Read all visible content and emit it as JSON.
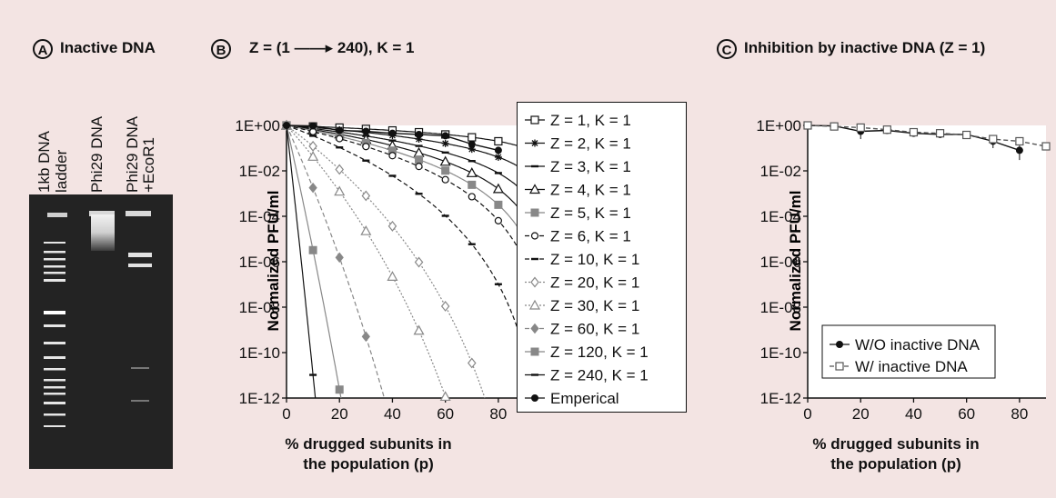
{
  "panel_a": {
    "letter": "A",
    "title": "Inactive DNA",
    "lanes": [
      "1kb DNA",
      "ladder",
      "Phi29 DNA",
      "Phi29 DNA",
      "+EcoR1"
    ]
  },
  "panel_b": {
    "letter": "B",
    "title": "Z = (1 ——▸ 240), K = 1"
  },
  "panel_c": {
    "letter": "C",
    "title": "Inhibition by inactive DNA (Z = 1)"
  },
  "chart_data": [
    {
      "type": "line",
      "title": "Z = (1 ——▸ 240), K = 1",
      "xlabel": "% drugged subunits in the population (p)",
      "ylabel": "Normalized PFU/ml",
      "x_ticks": [
        0,
        20,
        40,
        60,
        80
      ],
      "y_ticks": [
        "1E+00",
        "1E-02",
        "1E-04",
        "1E-06",
        "1E-08",
        "1E-10",
        "1E-12"
      ],
      "xlim": [
        0,
        90
      ],
      "ylim": [
        1e-12,
        1
      ],
      "y_scale": "log",
      "legend_position": "right",
      "series": [
        {
          "name": "Z = 1, K = 1",
          "z": 1,
          "color": "#111111",
          "marker": "square-open",
          "line": "solid"
        },
        {
          "name": "Z = 2, K = 1",
          "z": 2,
          "color": "#111111",
          "marker": "asterisk",
          "line": "solid"
        },
        {
          "name": "Z = 3, K = 1",
          "z": 3,
          "color": "#111111",
          "marker": "dash",
          "line": "solid"
        },
        {
          "name": "Z = 4, K = 1",
          "z": 4,
          "color": "#111111",
          "marker": "triangle-open",
          "line": "solid"
        },
        {
          "name": "Z = 5, K = 1",
          "z": 5,
          "color": "#888888",
          "marker": "square-filled",
          "line": "solid"
        },
        {
          "name": "Z = 6, K = 1",
          "z": 6,
          "color": "#111111",
          "marker": "circle-open",
          "line": "dashed"
        },
        {
          "name": "Z = 10, K = 1",
          "z": 10,
          "color": "#111111",
          "marker": "dash",
          "line": "dashed"
        },
        {
          "name": "Z = 20, K = 1",
          "z": 20,
          "color": "#888888",
          "marker": "diamond-open",
          "line": "dotted"
        },
        {
          "name": "Z = 30, K = 1",
          "z": 30,
          "color": "#888888",
          "marker": "triangle-open",
          "line": "dotted"
        },
        {
          "name": "Z = 60, K = 1",
          "z": 60,
          "color": "#888888",
          "marker": "diamond-filled",
          "line": "dashed"
        },
        {
          "name": "Z = 120, K = 1",
          "z": 120,
          "color": "#888888",
          "marker": "square-filled",
          "line": "solid"
        },
        {
          "name": "Z = 240, K = 1",
          "z": 240,
          "color": "#111111",
          "marker": "dash",
          "line": "solid"
        },
        {
          "name": "Emperical",
          "z": null,
          "color": "#111111",
          "marker": "circle-filled",
          "line": "solid",
          "x": [
            0,
            10,
            20,
            30,
            40,
            50,
            60,
            70,
            80
          ],
          "y": [
            1,
            0.95,
            0.6,
            0.55,
            0.45,
            0.4,
            0.35,
            0.15,
            0.08
          ]
        }
      ]
    },
    {
      "type": "line",
      "title": "Inhibition by inactive DNA (Z = 1)",
      "xlabel": "% drugged subunits in the population (p)",
      "ylabel": "Normalized PFU/ml",
      "x_ticks": [
        0,
        20,
        40,
        60,
        80
      ],
      "y_ticks": [
        "1E+00",
        "1E-02",
        "1E-04",
        "1E-06",
        "1E-08",
        "1E-10",
        "1E-12"
      ],
      "xlim": [
        0,
        90
      ],
      "ylim": [
        1e-12,
        1
      ],
      "y_scale": "log",
      "legend_position": "bottom-right",
      "series": [
        {
          "name": "W/O inactive DNA",
          "color": "#111111",
          "marker": "circle-filled",
          "line": "solid",
          "x": [
            0,
            10,
            20,
            30,
            40,
            50,
            60,
            70,
            80
          ],
          "y": [
            1,
            0.95,
            0.55,
            0.6,
            0.45,
            0.4,
            0.4,
            0.2,
            0.08
          ],
          "err": [
            0.05,
            0.05,
            0.3,
            0.1,
            0.08,
            0.1,
            0.1,
            0.1,
            0.05
          ]
        },
        {
          "name": "W/ inactive DNA",
          "color": "#555555",
          "marker": "square-open",
          "line": "dashed",
          "x": [
            0,
            10,
            20,
            30,
            40,
            50,
            60,
            70,
            80,
            90
          ],
          "y": [
            1,
            0.9,
            0.8,
            0.65,
            0.5,
            0.45,
            0.38,
            0.25,
            0.2,
            0.12
          ]
        }
      ]
    }
  ]
}
